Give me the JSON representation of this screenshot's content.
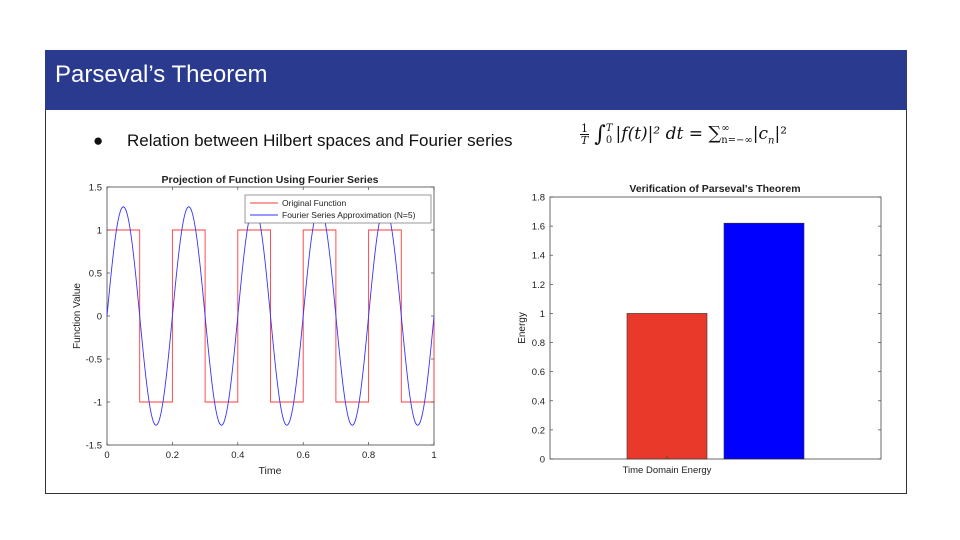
{
  "slide": {
    "title": "Parseval’s Theorem",
    "bullet": "Relation between Hilbert spaces and Fourier series",
    "formula": {
      "frac_num": "1",
      "frac_den": "T",
      "int_upper": "T",
      "int_lower": "0",
      "integrand": "|f(t)|² dt = ",
      "sum_upper": "∞",
      "sum_lower": "n=−∞",
      "rhs": "|c",
      "rhs_sub": "n",
      "rhs_end": "|²"
    }
  },
  "colors": {
    "title_bar": "#2a3b8f",
    "original": "#ff3b3b",
    "approx": "#3333ff",
    "bar_time": "#e8392b",
    "bar_freq": "#0000ff"
  },
  "chart_data": [
    {
      "type": "line",
      "title": "Projection of Function Using Fourier Series",
      "xlabel": "Time",
      "ylabel": "Function Value",
      "xlim": [
        0,
        1
      ],
      "ylim": [
        -1.5,
        1.5
      ],
      "xticks": [
        "0",
        "0.2",
        "0.4",
        "0.6",
        "0.8",
        "1"
      ],
      "yticks": [
        "-1.5",
        "-1",
        "-0.5",
        "0",
        "0.5",
        "1",
        "1.5"
      ],
      "legend_position": "top-right",
      "series": [
        {
          "name": "Original Function",
          "kind": "square_wave",
          "frequency": 5,
          "amplitude": 1,
          "x": [
            0,
            0.1,
            0.1,
            0.2,
            0.2,
            0.3,
            0.3,
            0.4,
            0.4,
            0.5,
            0.5,
            0.6,
            0.6,
            0.7,
            0.7,
            0.8,
            0.8,
            0.9,
            0.9,
            1.0,
            1.0
          ],
          "y": [
            1,
            1,
            -1,
            -1,
            1,
            1,
            -1,
            -1,
            1,
            1,
            -1,
            -1,
            1,
            1,
            -1,
            -1,
            1,
            1,
            -1,
            -1,
            0
          ]
        },
        {
          "name": "Fourier Series Approximation (N=5)",
          "kind": "sine",
          "frequency": 5,
          "amplitude": 1.27,
          "x_start": 0,
          "x_end": 1
        }
      ]
    },
    {
      "type": "bar",
      "title": "Verification of Parseval's Theorem",
      "xlabel": "",
      "ylabel": "Energy",
      "ylim": [
        0,
        1.8
      ],
      "yticks": [
        "0",
        "0.2",
        "0.4",
        "0.6",
        "0.8",
        "1",
        "1.2",
        "1.4",
        "1.6",
        "1.8"
      ],
      "categories": [
        "Time Domain Energy",
        ""
      ],
      "values": [
        1.0,
        1.62
      ],
      "xticklabel": "Time Domain Energy"
    }
  ]
}
